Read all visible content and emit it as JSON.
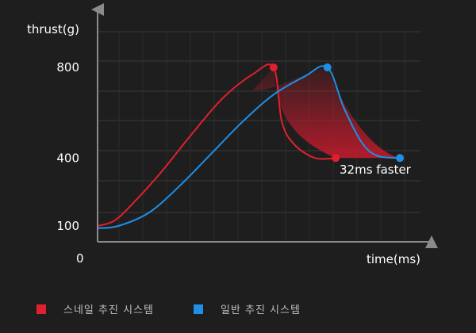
{
  "chart_data": {
    "type": "line",
    "ylabel": "thrust(g)",
    "xlabel": "time(ms)",
    "y_ticks": [
      {
        "value": 100,
        "label": "100"
      },
      {
        "value": 400,
        "label": "400"
      },
      {
        "value": 800,
        "label": "800"
      }
    ],
    "origin_label": "0",
    "series": [
      {
        "name": "스네일 추진 시스템",
        "color": "#e0202e",
        "points": [
          [
            0,
            100
          ],
          [
            15,
            120
          ],
          [
            30,
            180
          ],
          [
            60,
            330
          ],
          [
            90,
            500
          ],
          [
            120,
            660
          ],
          [
            150,
            770
          ],
          [
            170,
            800
          ],
          [
            178,
            560
          ],
          [
            190,
            460
          ],
          [
            210,
            400
          ],
          [
            230,
            400
          ]
        ],
        "markers": [
          [
            170,
            800
          ],
          [
            230,
            400
          ]
        ]
      },
      {
        "name": "일반 추진 시스템",
        "color": "#1f8fe8",
        "points": [
          [
            0,
            90
          ],
          [
            20,
            100
          ],
          [
            50,
            160
          ],
          [
            80,
            280
          ],
          [
            110,
            420
          ],
          [
            140,
            560
          ],
          [
            170,
            680
          ],
          [
            200,
            760
          ],
          [
            222,
            800
          ],
          [
            238,
            620
          ],
          [
            255,
            470
          ],
          [
            270,
            410
          ],
          [
            292,
            400
          ]
        ],
        "markers": [
          [
            222,
            800
          ],
          [
            292,
            400
          ]
        ]
      }
    ],
    "annotation": "32ms faster",
    "grid": true
  },
  "legend": {
    "items": [
      {
        "label": "스네일 추진 시스템",
        "color": "#e0202e"
      },
      {
        "label": "일반 추진 시스템",
        "color": "#1f8fe8"
      }
    ]
  }
}
